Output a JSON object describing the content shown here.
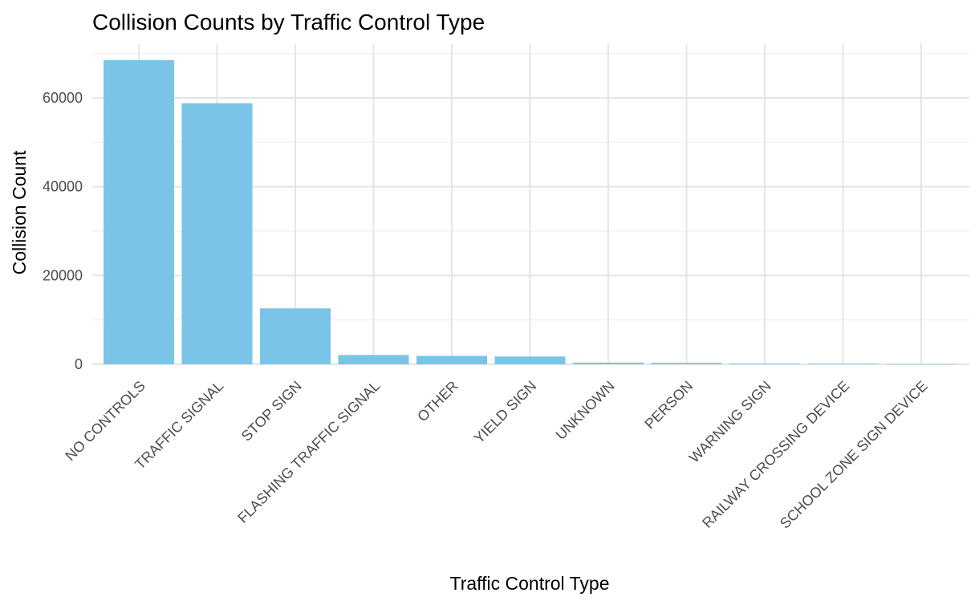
{
  "chart_data": {
    "type": "bar",
    "title": "Collision Counts by Traffic Control Type",
    "xlabel": "Traffic Control Type",
    "ylabel": "Collision Count",
    "categories": [
      "NO CONTROLS",
      "TRAFFIC SIGNAL",
      "STOP SIGN",
      "FLASHING TRAFFIC SIGNAL",
      "OTHER",
      "YIELD SIGN",
      "UNKNOWN",
      "PERSON",
      "WARNING SIGN",
      "RAILWAY CROSSING DEVICE",
      "SCHOOL ZONE SIGN DEVICE"
    ],
    "values": [
      68500,
      58800,
      12600,
      2100,
      1900,
      1750,
      380,
      330,
      170,
      150,
      30
    ],
    "ylim": [
      0,
      70000
    ],
    "yticks": [
      0,
      20000,
      40000,
      60000
    ],
    "ytick_labels": [
      "0",
      "20000",
      "40000",
      "60000"
    ],
    "bar_color": "#7AC5E7",
    "grid": true,
    "legend": "none"
  }
}
